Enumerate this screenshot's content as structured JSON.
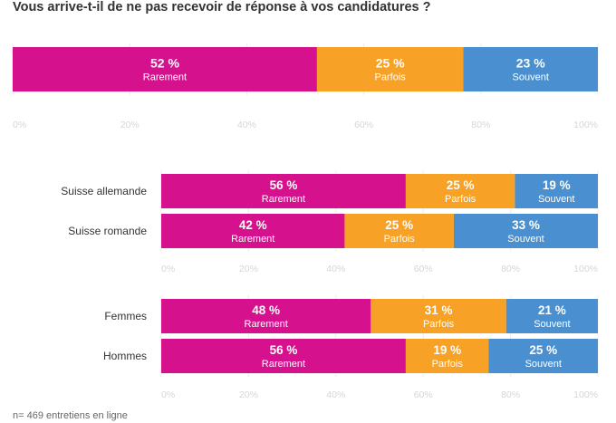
{
  "title": "Vous arrive-t-il de ne pas recevoir de réponse à vos candidatures ?",
  "footnote": "n= 469 entretiens en ligne",
  "colors": {
    "rarement": "#d5118e",
    "parfois": "#f7a127",
    "souvent": "#4a90d0"
  },
  "tick_suffix": "%",
  "chart_data": [
    {
      "type": "bar",
      "orientation": "horizontal",
      "stacked": true,
      "normalized": true,
      "xlim": [
        0,
        100
      ],
      "ticks": [
        0,
        20,
        40,
        60,
        80,
        100
      ],
      "rows": [
        {
          "label": "",
          "segments": [
            {
              "name": "Rarement",
              "value": 52,
              "text": "52 %"
            },
            {
              "name": "Parfois",
              "value": 25,
              "text": "25 %"
            },
            {
              "name": "Souvent",
              "value": 23,
              "text": "23 %"
            }
          ]
        }
      ]
    },
    {
      "type": "bar",
      "orientation": "horizontal",
      "stacked": true,
      "normalized": true,
      "xlim": [
        0,
        100
      ],
      "ticks": [
        0,
        20,
        40,
        60,
        80,
        100
      ],
      "rows": [
        {
          "label": "Suisse allemande",
          "segments": [
            {
              "name": "Rarement",
              "value": 56,
              "text": "56 %"
            },
            {
              "name": "Parfois",
              "value": 25,
              "text": "25 %"
            },
            {
              "name": "Souvent",
              "value": 19,
              "text": "19 %"
            }
          ]
        },
        {
          "label": "Suisse romande",
          "segments": [
            {
              "name": "Rarement",
              "value": 42,
              "text": "42 %"
            },
            {
              "name": "Parfois",
              "value": 25,
              "text": "25 %"
            },
            {
              "name": "Souvent",
              "value": 33,
              "text": "33 %"
            }
          ]
        }
      ]
    },
    {
      "type": "bar",
      "orientation": "horizontal",
      "stacked": true,
      "normalized": true,
      "xlim": [
        0,
        100
      ],
      "ticks": [
        0,
        20,
        40,
        60,
        80,
        100
      ],
      "rows": [
        {
          "label": "Femmes",
          "segments": [
            {
              "name": "Rarement",
              "value": 48,
              "text": "48 %"
            },
            {
              "name": "Parfois",
              "value": 31,
              "text": "31 %"
            },
            {
              "name": "Souvent",
              "value": 21,
              "text": "21 %"
            }
          ]
        },
        {
          "label": "Hommes",
          "segments": [
            {
              "name": "Rarement",
              "value": 56,
              "text": "56 %"
            },
            {
              "name": "Parfois",
              "value": 19,
              "text": "19 %"
            },
            {
              "name": "Souvent",
              "value": 25,
              "text": "25 %"
            }
          ]
        }
      ]
    }
  ]
}
